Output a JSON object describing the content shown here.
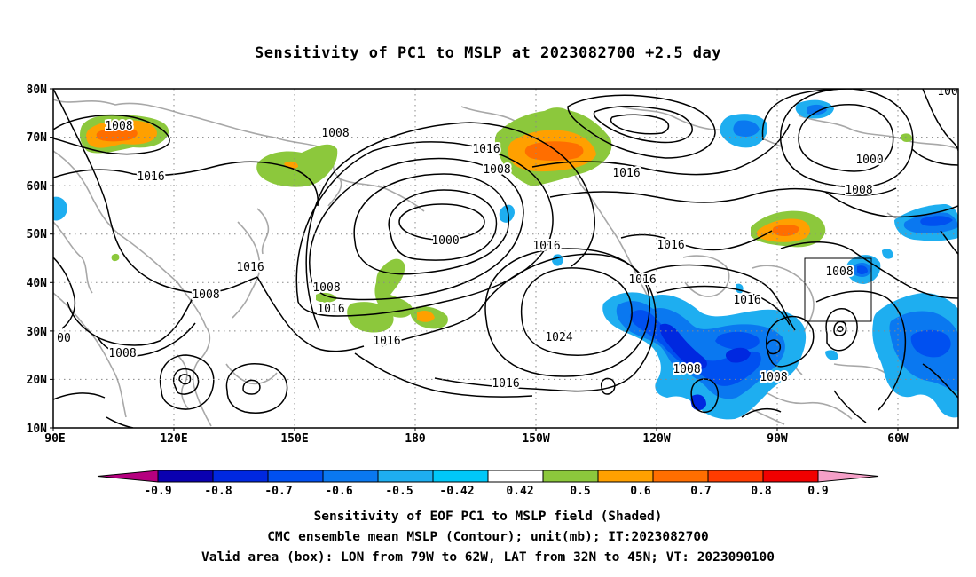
{
  "title": "Sensitivity of PC1 to MSLP at 2023082700 +2.5 day",
  "lat_labels": [
    "80N",
    "70N",
    "60N",
    "50N",
    "40N",
    "30N",
    "20N",
    "10N"
  ],
  "lon_labels": [
    "90E",
    "120E",
    "150E",
    "180",
    "150W",
    "120W",
    "90W",
    "60W"
  ],
  "contour_labels": [
    "1008",
    "1008",
    "1016",
    "1016",
    "1008",
    "1016",
    "1008",
    "1000",
    "1008",
    "1016",
    "1016",
    "1008",
    "1016",
    "1024",
    "1016",
    "1016",
    "1016",
    "1000",
    "1008",
    "1016",
    "1016",
    "1008",
    "1008",
    "1008",
    "00",
    "100"
  ],
  "colorbar": {
    "tick_labels": [
      "-0.9",
      "-0.8",
      "-0.7",
      "-0.6",
      "-0.5",
      "-0.42",
      "0.42",
      "0.5",
      "0.6",
      "0.7",
      "0.8",
      "0.9"
    ],
    "colors": [
      "#b5007f",
      "#0a00b0",
      "#0028e0",
      "#0050f0",
      "#0a78f0",
      "#1eaef0",
      "#00c8f8",
      "#ffffff",
      "#8cc83c",
      "#ffa000",
      "#ff6e00",
      "#ff3c00",
      "#f00000",
      "#f5a0c8"
    ]
  },
  "captions": {
    "line1": "Sensitivity of EOF PC1 to MSLP field (Shaded)",
    "line2": "CMC ensemble mean MSLP (Contour); unit(mb); IT:2023082700",
    "line3": "Valid area (box): LON from 79W to 62W, LAT from 32N to 45N; VT: 2023090100"
  }
}
